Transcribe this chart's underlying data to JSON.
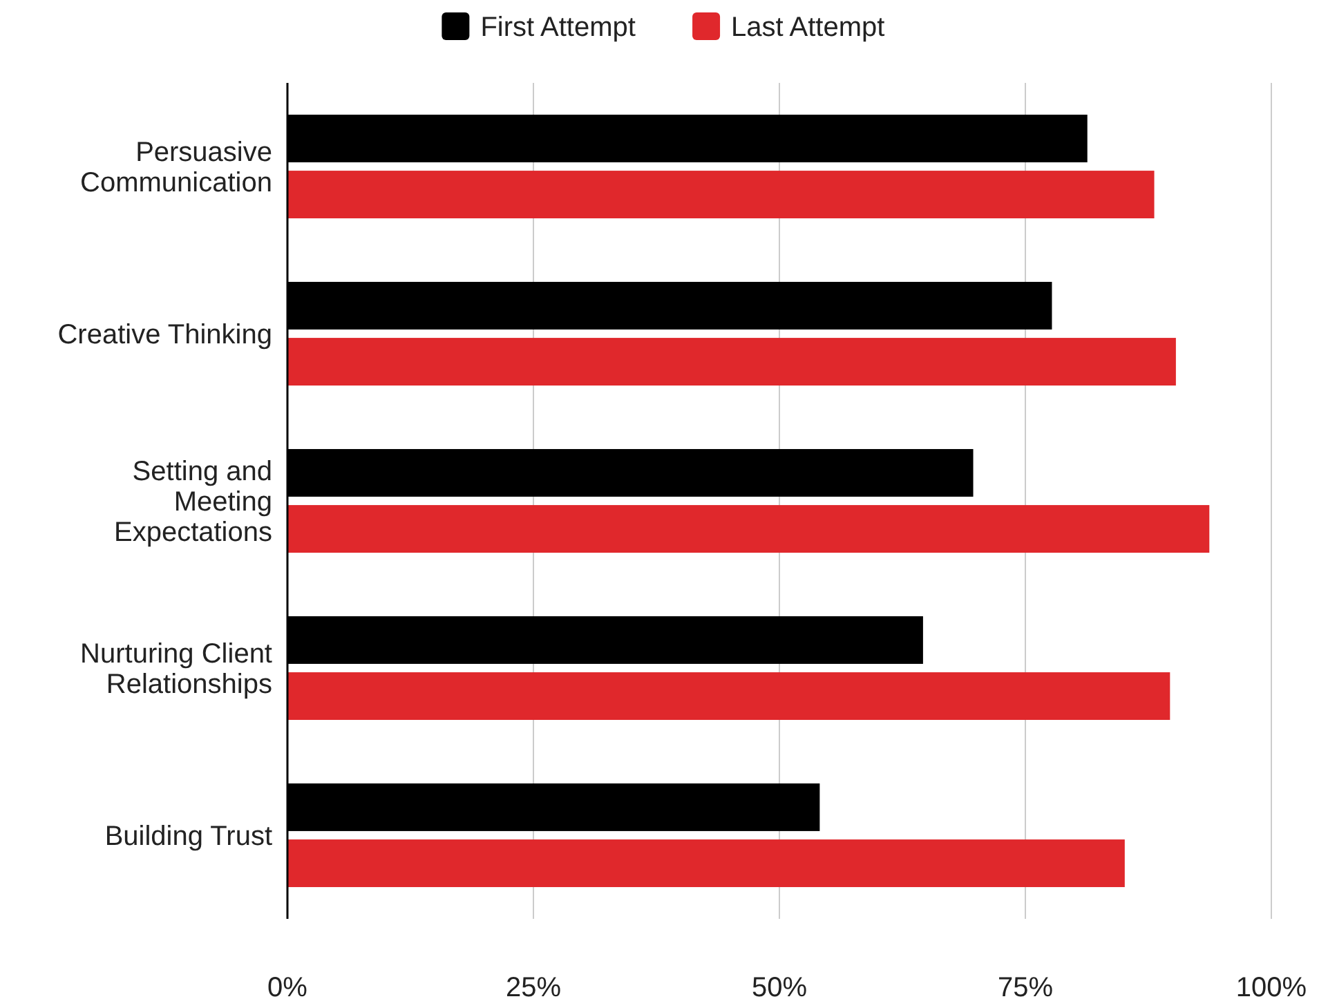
{
  "chart_data": {
    "type": "bar",
    "orientation": "horizontal",
    "categories": [
      "Persuasive Communication",
      "Creative Thinking",
      "Setting and Meeting Expectations",
      "Nurturing Client Relationships",
      "Building Trust"
    ],
    "series": [
      {
        "name": "First Attempt",
        "color": "#000000",
        "values": [
          81.3,
          77.7,
          69.7,
          64.6,
          54.1
        ]
      },
      {
        "name": "Last Attempt",
        "color": "#e0282c",
        "values": [
          88.1,
          90.3,
          93.7,
          89.7,
          85.1
        ]
      }
    ],
    "xlim": [
      0,
      100
    ],
    "xticks": [
      {
        "value": 0,
        "label": "0%"
      },
      {
        "value": 25,
        "label": "25%"
      },
      {
        "value": 50,
        "label": "50%"
      },
      {
        "value": 75,
        "label": "75%"
      },
      {
        "value": 100,
        "label": "100%"
      }
    ],
    "grid": "x",
    "legend": "top"
  }
}
